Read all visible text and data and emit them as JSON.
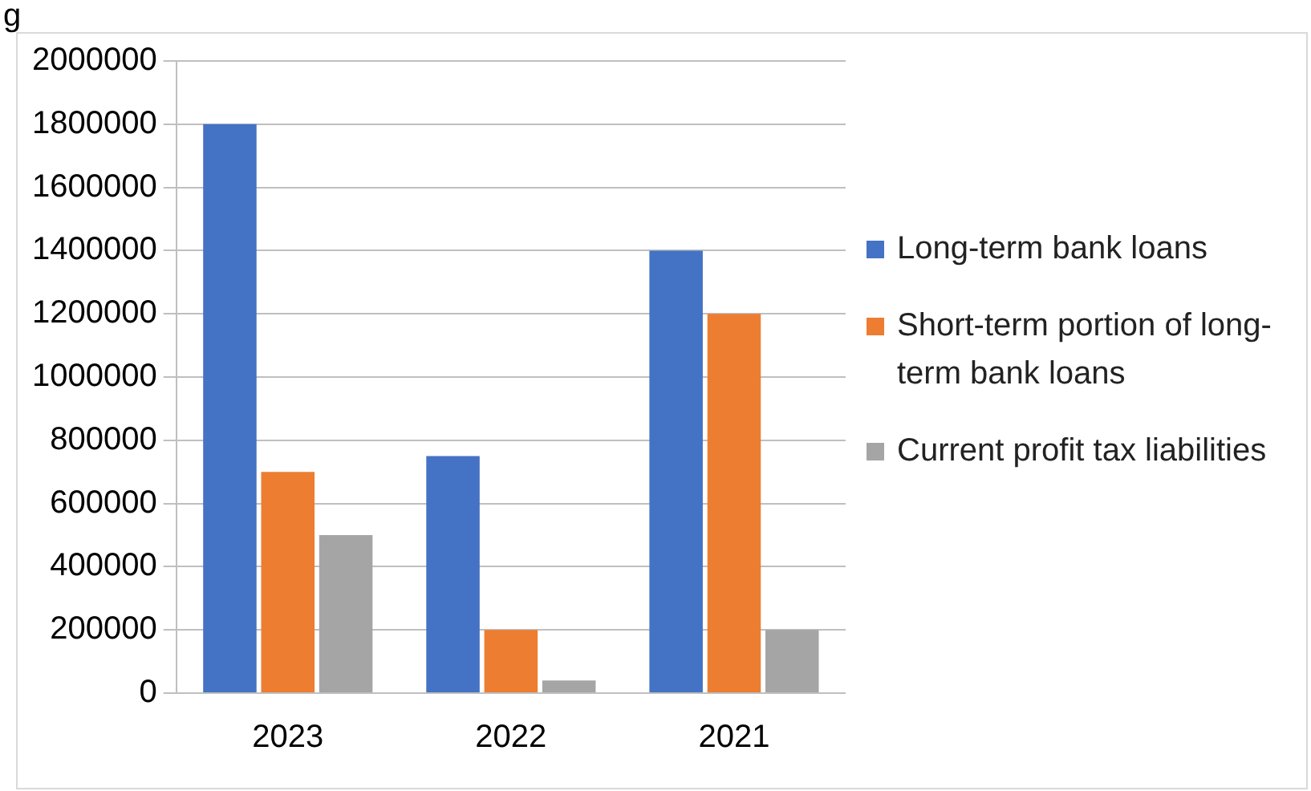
{
  "chart_data": {
    "type": "bar",
    "title": "g",
    "categories": [
      "2023",
      "2022",
      "2021"
    ],
    "series": [
      {
        "name": "Long-term bank loans",
        "color": "#4472c4",
        "values": [
          1800000,
          750000,
          1400000
        ]
      },
      {
        "name": "Short-term portion of long-term bank loans",
        "color": "#ed7d31",
        "values": [
          700000,
          200000,
          1200000
        ]
      },
      {
        "name": "Current profit tax liabilities",
        "color": "#a5a5a5",
        "values": [
          500000,
          40000,
          200000
        ]
      }
    ],
    "ylim": [
      0,
      2000000
    ],
    "yticks": [
      0,
      200000,
      400000,
      600000,
      800000,
      1000000,
      1200000,
      1400000,
      1600000,
      1800000,
      2000000
    ],
    "grid": "y",
    "legend": "right"
  }
}
